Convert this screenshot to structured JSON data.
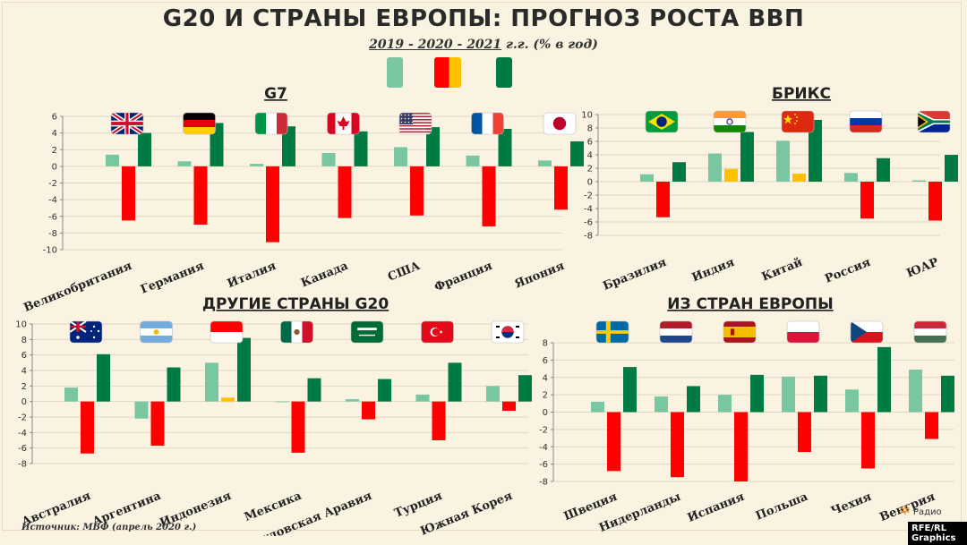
{
  "title": "G20 И СТРАНЫ ЕВРОПЫ: ПРОГНОЗ РОСТА ВВП",
  "subtitle_years": "2019  -  2020  -  2021",
  "subtitle_units": " г.г. (% в год)",
  "source": "Источник: МВФ (апрель 2020 г.)",
  "credit": "RFE/RL Graphics",
  "logo_text": "Радио",
  "colors": {
    "y2019": "#79c7a1",
    "y2020": "#ff0000",
    "y2020_alt": "#ffc000",
    "y2021": "#007a43",
    "grid": "#e0d6c2"
  },
  "chart_data": [
    {
      "type": "bar",
      "title": "G7",
      "ylim": [
        -10,
        6
      ],
      "yticks": [
        -10,
        -8,
        -6,
        -4,
        -2,
        0,
        2,
        4,
        6
      ],
      "series_names": [
        "2019",
        "2020",
        "2021"
      ],
      "categories": [
        "Великобритания",
        "Германия",
        "Италия",
        "Канада",
        "США",
        "Франция",
        "Япония"
      ],
      "flags": [
        "uk",
        "de",
        "it",
        "ca",
        "us",
        "fr",
        "jp"
      ],
      "values": [
        [
          1.4,
          -6.5,
          4.0
        ],
        [
          0.6,
          -7.0,
          5.2
        ],
        [
          0.3,
          -9.1,
          4.8
        ],
        [
          1.6,
          -6.2,
          4.2
        ],
        [
          2.3,
          -5.9,
          4.7
        ],
        [
          1.3,
          -7.2,
          4.5
        ],
        [
          0.7,
          -5.2,
          3.0
        ]
      ]
    },
    {
      "type": "bar",
      "title": "БРИКС",
      "ylim": [
        -8,
        10
      ],
      "yticks": [
        -8,
        -6,
        -4,
        -2,
        0,
        2,
        4,
        6,
        8,
        10
      ],
      "series_names": [
        "2019",
        "2020",
        "2021"
      ],
      "categories": [
        "Бразилия",
        "Индия",
        "Китай",
        "Россия",
        "ЮАР"
      ],
      "flags": [
        "br",
        "in",
        "cn",
        "ru",
        "za"
      ],
      "values": [
        [
          1.1,
          -5.3,
          2.9
        ],
        [
          4.2,
          1.9,
          7.4
        ],
        [
          6.1,
          1.2,
          9.2
        ],
        [
          1.3,
          -5.5,
          3.5
        ],
        [
          0.2,
          -5.8,
          4.0
        ]
      ]
    },
    {
      "type": "bar",
      "title": "ДРУГИЕ СТРАНЫ G20",
      "ylim": [
        -8,
        10
      ],
      "yticks": [
        -8,
        -6,
        -4,
        -2,
        0,
        2,
        4,
        6,
        8,
        10
      ],
      "series_names": [
        "2019",
        "2020",
        "2021"
      ],
      "categories": [
        "Австралия",
        "Аргентина",
        "Индонезия",
        "Мексика",
        "Саудовская Аравия",
        "Турция",
        "Южная Корея"
      ],
      "flags": [
        "au",
        "ar",
        "id",
        "mx",
        "sa",
        "tr",
        "kr"
      ],
      "values": [
        [
          1.8,
          -6.7,
          6.1
        ],
        [
          -2.2,
          -5.7,
          4.4
        ],
        [
          5.0,
          0.5,
          8.2
        ],
        [
          -0.1,
          -6.6,
          3.0
        ],
        [
          0.3,
          -2.3,
          2.9
        ],
        [
          0.9,
          -5.0,
          5.0
        ],
        [
          2.0,
          -1.2,
          3.4
        ]
      ]
    },
    {
      "type": "bar",
      "title": "ИЗ СТРАН ЕВРОПЫ",
      "ylim": [
        -8,
        8
      ],
      "yticks": [
        -8,
        -6,
        -4,
        -2,
        0,
        2,
        4,
        6,
        8
      ],
      "series_names": [
        "2019",
        "2020",
        "2021"
      ],
      "categories": [
        "Швеция",
        "Нидерланды",
        "Испания",
        "Польша",
        "Чехия",
        "Венгрия"
      ],
      "flags": [
        "se",
        "nl",
        "es",
        "pl",
        "cz",
        "hu"
      ],
      "values": [
        [
          1.2,
          -6.8,
          5.2
        ],
        [
          1.8,
          -7.5,
          3.0
        ],
        [
          2.0,
          -8.0,
          4.3
        ],
        [
          4.1,
          -4.6,
          4.2
        ],
        [
          2.6,
          -6.5,
          7.5
        ],
        [
          4.9,
          -3.1,
          4.2
        ]
      ]
    }
  ]
}
